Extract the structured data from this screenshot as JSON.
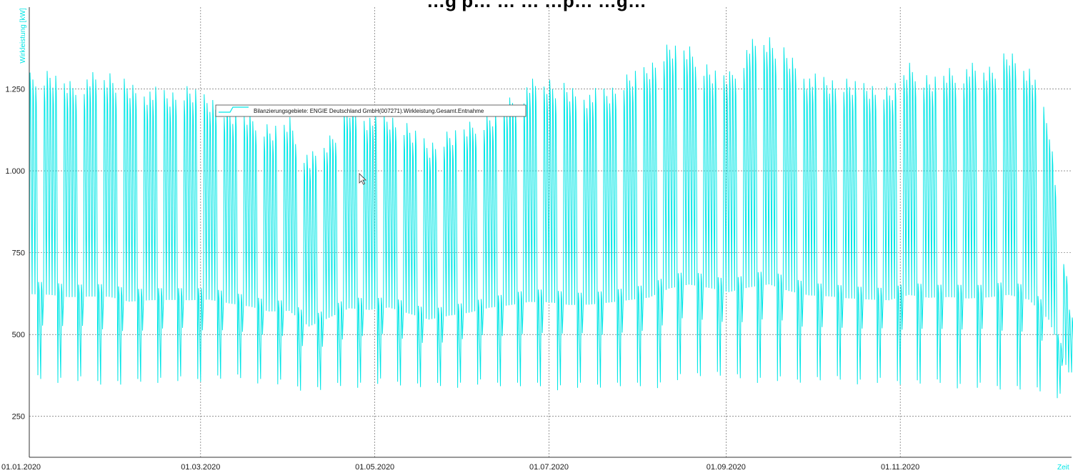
{
  "chart_data": {
    "type": "line",
    "title": "…g p… … … …p… …g…",
    "xlabel": "Zeit",
    "ylabel": "Wirkleistung [kW]",
    "ylim": [
      125,
      1500
    ],
    "xlim": [
      "2020-01-01",
      "2020-12-31"
    ],
    "yticks": [
      250,
      500,
      750,
      1000,
      1250
    ],
    "ytick_labels": [
      "250",
      "500",
      "750",
      "1.000",
      "1.250"
    ],
    "xticks": [
      "2020-01-01",
      "2020-03-01",
      "2020-05-01",
      "2020-07-01",
      "2020-09-01",
      "2020-11-01"
    ],
    "xtick_labels": [
      "01.01.2020",
      "01.03.2020",
      "01.05.2020",
      "01.07.2020",
      "01.09.2020",
      "01.11.2020"
    ],
    "grid": true,
    "legend_position": "upper-left",
    "series": [
      {
        "name": "Bilanzierungsgebiete: ENGIE Deutschland GmbH(007271).Wirkleistung.Gesamt.Entnahme",
        "color": "#00e6e6",
        "x": [
          "2020-01-01",
          "2020-01-08",
          "2020-01-15",
          "2020-01-22",
          "2020-01-29",
          "2020-02-05",
          "2020-02-12",
          "2020-02-19",
          "2020-02-26",
          "2020-03-04",
          "2020-03-11",
          "2020-03-18",
          "2020-03-25",
          "2020-04-01",
          "2020-04-08",
          "2020-04-15",
          "2020-04-22",
          "2020-04-29",
          "2020-05-06",
          "2020-05-13",
          "2020-05-20",
          "2020-05-27",
          "2020-06-03",
          "2020-06-10",
          "2020-06-17",
          "2020-06-24",
          "2020-07-01",
          "2020-07-08",
          "2020-07-15",
          "2020-07-22",
          "2020-07-29",
          "2020-08-05",
          "2020-08-12",
          "2020-08-19",
          "2020-08-26",
          "2020-09-02",
          "2020-09-09",
          "2020-09-16",
          "2020-09-23",
          "2020-09-30",
          "2020-10-07",
          "2020-10-14",
          "2020-10-21",
          "2020-10-28",
          "2020-11-04",
          "2020-11-11",
          "2020-11-18",
          "2020-11-25",
          "2020-12-02",
          "2020-12-09",
          "2020-12-16",
          "2020-12-23",
          "2020-12-30"
        ],
        "peak": [
          1300,
          1320,
          1280,
          1300,
          1310,
          1270,
          1260,
          1250,
          1260,
          1240,
          1200,
          1180,
          1150,
          1170,
          1050,
          1120,
          1210,
          1180,
          1180,
          1140,
          1100,
          1130,
          1150,
          1190,
          1230,
          1280,
          1290,
          1260,
          1250,
          1260,
          1300,
          1340,
          1400,
          1380,
          1330,
          1310,
          1400,
          1420,
          1360,
          1300,
          1290,
          1280,
          1280,
          1260,
          1330,
          1300,
          1320,
          1330,
          1330,
          1370,
          1330,
          1150,
          600
        ],
        "trough": [
          360,
          350,
          355,
          350,
          345,
          340,
          350,
          355,
          350,
          360,
          360,
          355,
          345,
          340,
          320,
          330,
          335,
          340,
          350,
          340,
          330,
          335,
          340,
          345,
          340,
          335,
          330,
          330,
          335,
          340,
          335,
          330,
          345,
          370,
          375,
          365,
          350,
          355,
          350,
          355,
          355,
          350,
          345,
          350,
          345,
          345,
          340,
          330,
          335,
          330,
          325,
          310,
          300
        ]
      }
    ]
  }
}
